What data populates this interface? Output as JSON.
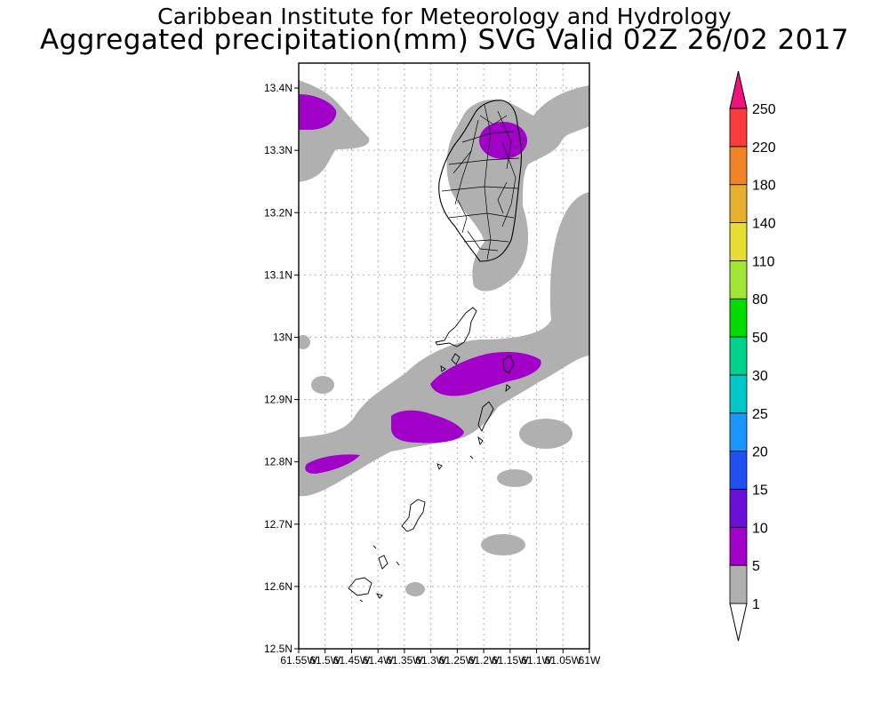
{
  "header": {
    "line1": "Caribbean Institute for Meteorology and Hydrology",
    "line2": "Aggregated precipitation(mm) SVG Valid 02Z 26/02 2017"
  },
  "map": {
    "lat_ticks": [
      "13.4N",
      "13.3N",
      "13.2N",
      "13.1N",
      "13N",
      "12.9N",
      "12.8N",
      "12.7N",
      "12.6N",
      "12.5N"
    ],
    "lon_ticks": [
      "61.55W",
      "61.5W",
      "61.45W",
      "61.4W",
      "61.35W",
      "61.3W",
      "61.25W",
      "61.2W",
      "61.15W",
      "61.1W",
      "61.05W",
      "61W"
    ],
    "lat_range": [
      12.5,
      13.44
    ],
    "lon_range": [
      -61.55,
      -61.0
    ],
    "grid": true
  },
  "colorbar": {
    "levels": [
      "1",
      "5",
      "10",
      "15",
      "20",
      "25",
      "30",
      "50",
      "80",
      "110",
      "140",
      "180",
      "220",
      "250"
    ],
    "colors": [
      "#b0b0b0",
      "#a000c8",
      "#6a10d8",
      "#2050f0",
      "#1a96ff",
      "#00c8c8",
      "#00d28c",
      "#00dc00",
      "#a0e632",
      "#e6dc32",
      "#e6af2d",
      "#f08228",
      "#fa3c3c",
      "#f0127d"
    ]
  }
}
